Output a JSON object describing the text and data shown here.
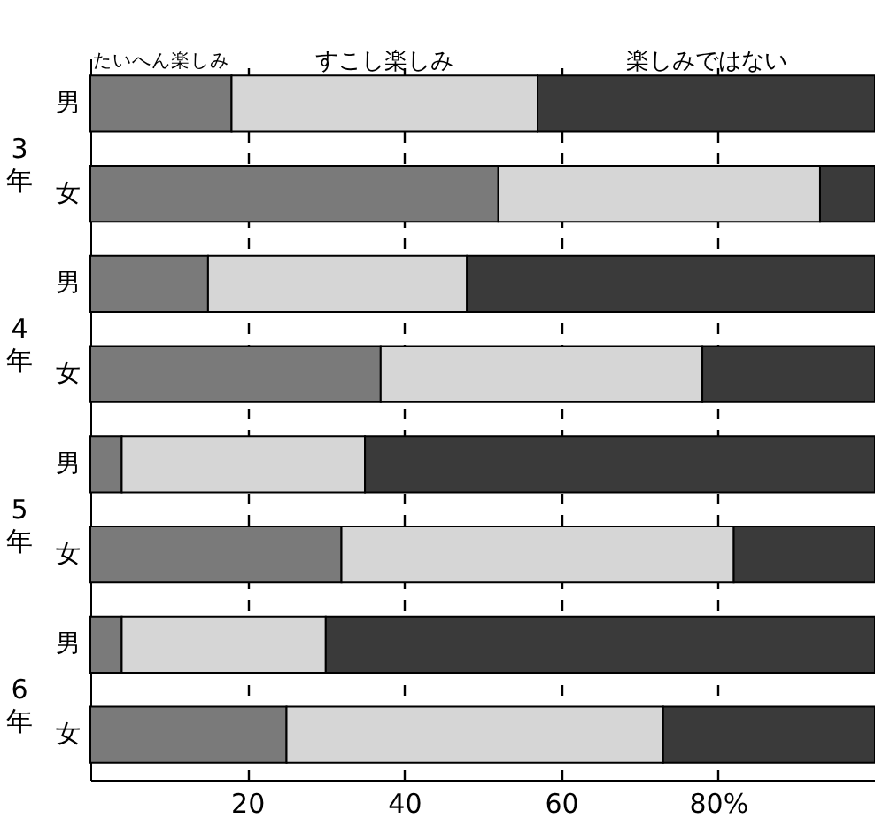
{
  "chart_data": {
    "type": "bar",
    "orientation": "horizontal",
    "stacked": true,
    "categories": [
      "男",
      "女",
      "男",
      "女",
      "男",
      "女",
      "男",
      "女"
    ],
    "series": [
      {
        "name": "たいへん楽しみ",
        "color": "#7a7a7a",
        "values": [
          18,
          52,
          15,
          37,
          4,
          32,
          4,
          25
        ]
      },
      {
        "name": "すこし楽しみ",
        "color": "#d6d6d6",
        "values": [
          39,
          41,
          33,
          41,
          31,
          50,
          26,
          48
        ]
      },
      {
        "name": "楽しみではない",
        "color": "#3a3a3a",
        "values": [
          43,
          7,
          52,
          22,
          65,
          18,
          70,
          27
        ]
      }
    ],
    "annotations": [
      "3年",
      "4年",
      "5年",
      "6年"
    ],
    "xlim": [
      0,
      100
    ],
    "xticks": [
      20,
      40,
      60,
      {
        "value": 80,
        "label": "80%"
      }
    ],
    "grid": "x",
    "legend": "top"
  }
}
